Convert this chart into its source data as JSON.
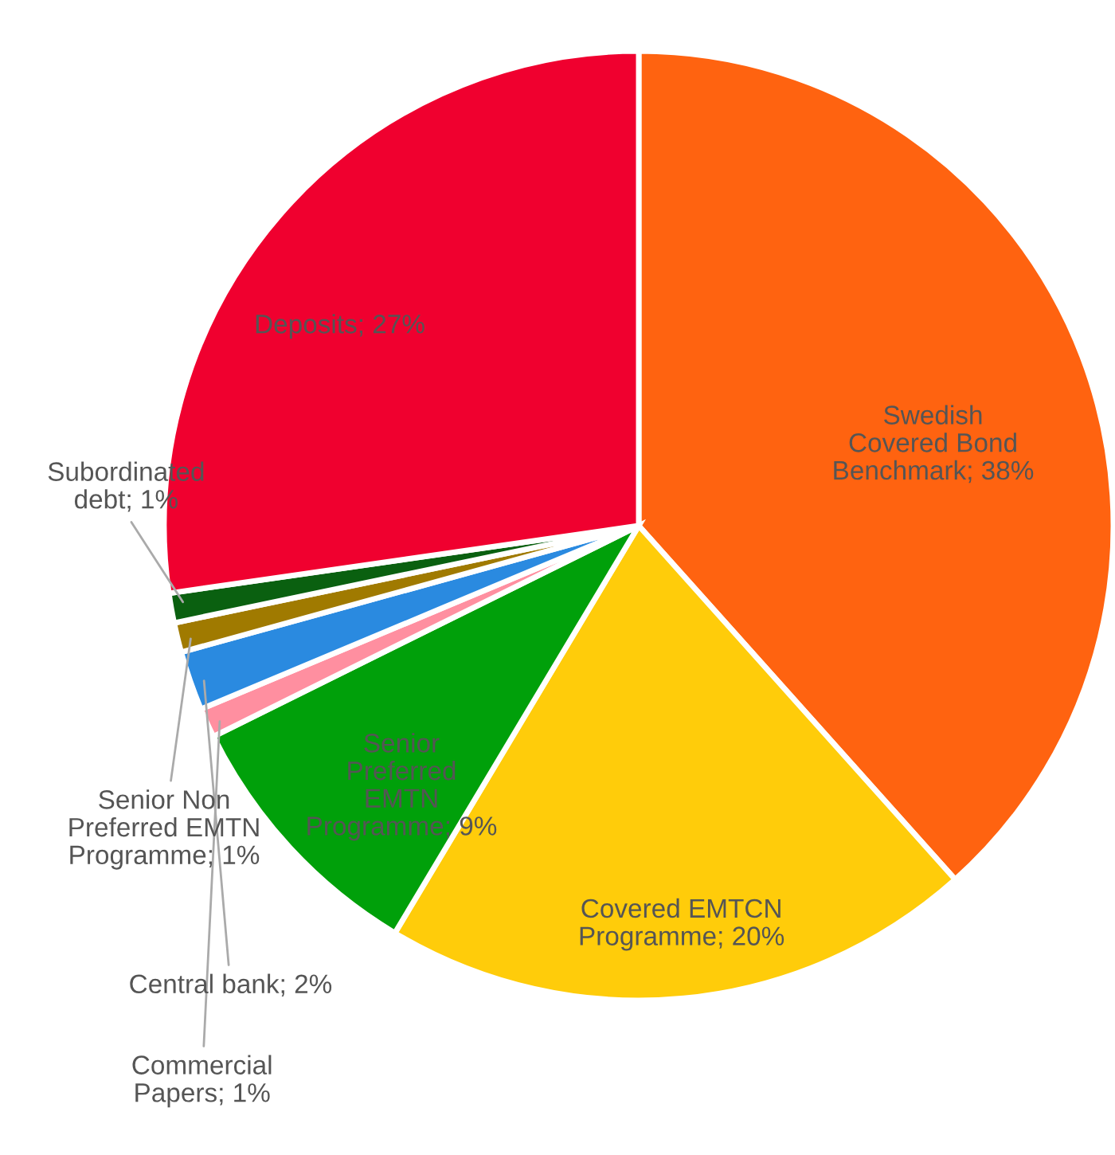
{
  "chart_data": {
    "type": "pie",
    "categories": [
      "Swedish\nCovered Bond\nBenchmark",
      "Covered EMTCN\nProgramme",
      "Senior\nPreferred\nEMTN\nProgramme",
      "Commercial\nPapers",
      "Central bank",
      "Senior Non\nPreferred EMTN\nProgramme",
      "Subordinated\ndebt",
      "Deposits"
    ],
    "values": [
      38,
      20,
      9,
      1,
      2,
      1,
      1,
      27
    ],
    "value_labels": [
      "38%",
      "20%",
      "9%",
      "1%",
      "2%",
      "1%",
      "1%",
      "27%"
    ],
    "colors": [
      "#ff6310",
      "#ffcc0a",
      "#00a00a",
      "#ff8fa0",
      "#2a8ae0",
      "#a07a00",
      "#0a6010",
      "#f0002f"
    ],
    "legend": false
  }
}
